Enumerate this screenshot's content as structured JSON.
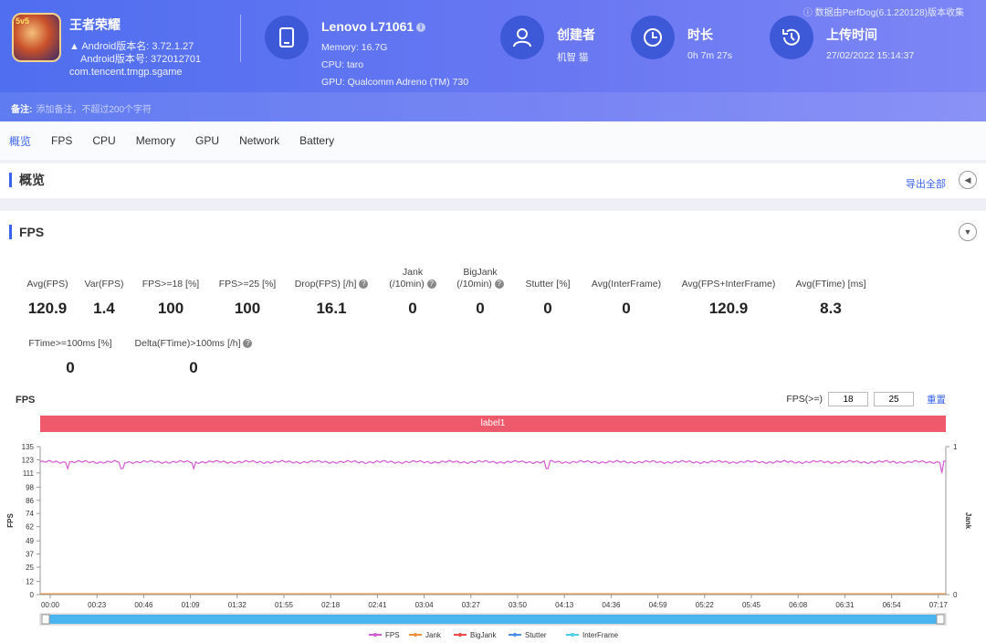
{
  "header": {
    "version_note": "数据由PerfDog(6.1.220128)版本收集",
    "app": {
      "icon_badge": "5v5",
      "name": "王者荣耀",
      "version_name": "Android版本名: 3.72.1.27",
      "version_code": "Android版本号: 372012701",
      "package": "com.tencent.tmgp.sgame"
    },
    "device": {
      "title": "Lenovo L71061",
      "memory": "Memory: 16.7G",
      "cpu": "CPU: taro",
      "gpu": "GPU: Qualcomm Adreno (TM) 730"
    },
    "creator": {
      "title": "创建者",
      "value": "机智 猫"
    },
    "duration": {
      "title": "时长",
      "value": "0h 7m 27s"
    },
    "upload": {
      "title": "上传时间",
      "value": "27/02/2022 15:14:37"
    },
    "note": {
      "label": "备注:",
      "placeholder": "添加备注，不超过200个字符"
    }
  },
  "tabs": [
    "概览",
    "FPS",
    "CPU",
    "Memory",
    "GPU",
    "Network",
    "Battery"
  ],
  "overview": {
    "title": "概览",
    "export": "导出全部"
  },
  "fps_section": {
    "title": "FPS",
    "metrics_row1": [
      {
        "label": "Avg(FPS)",
        "value": "120.9"
      },
      {
        "label": "Var(FPS)",
        "value": "1.4"
      },
      {
        "label": "FPS>=18 [%]",
        "value": "100"
      },
      {
        "label": "FPS>=25 [%]",
        "value": "100"
      },
      {
        "label": "Drop(FPS) [/h]",
        "value": "16.1"
      },
      {
        "label": "Jank\n(/10min)",
        "value": "0"
      },
      {
        "label": "BigJank\n(/10min)",
        "value": "0"
      },
      {
        "label": "Stutter [%]",
        "value": "0"
      },
      {
        "label": "Avg(InterFrame)",
        "value": "0"
      },
      {
        "label": "Avg(FPS+InterFrame)",
        "value": "120.9"
      },
      {
        "label": "Avg(FTime) [ms]",
        "value": "8.3"
      }
    ],
    "metrics_row2": [
      {
        "label": "FTime>=100ms [%]",
        "value": "0"
      },
      {
        "label": "Delta(FTime)>100ms [/h]",
        "value": "0"
      }
    ],
    "chart_title": "FPS",
    "threshold_label": "FPS(>=)",
    "threshold_1": "18",
    "threshold_2": "25",
    "reset": "重置",
    "label_bar": "label1"
  },
  "chart_data": {
    "type": "line",
    "title": "FPS",
    "ylabel": "FPS",
    "y2label": "Jank",
    "ylim": [
      0,
      135
    ],
    "y_ticks": [
      0,
      12,
      25,
      37,
      49,
      62,
      74,
      86,
      98,
      111,
      123,
      135
    ],
    "y2_ticks": [
      0,
      1
    ],
    "x_ticks": [
      "00:00",
      "00:23",
      "00:46",
      "01:09",
      "01:32",
      "01:55",
      "02:18",
      "02:41",
      "03:04",
      "03:27",
      "03:50",
      "04:13",
      "04:36",
      "04:59",
      "05:22",
      "05:45",
      "06:08",
      "06:31",
      "06:54",
      "07:17"
    ],
    "series": [
      {
        "name": "FPS",
        "color": "#d35ad2",
        "baseline": 121,
        "dips": [
          {
            "t": 0.03,
            "v": 115
          },
          {
            "t": 0.09,
            "v": 115
          },
          {
            "t": 0.17,
            "v": 115
          },
          {
            "t": 0.56,
            "v": 115
          },
          {
            "t": 0.995,
            "v": 111
          }
        ]
      },
      {
        "name": "Jank",
        "color": "#f0903c"
      },
      {
        "name": "BigJank",
        "color": "#ee4b4b"
      },
      {
        "name": "Stutter",
        "color": "#4a8fe8"
      },
      {
        "name": "InterFrame",
        "color": "#4ccfe8"
      }
    ]
  }
}
